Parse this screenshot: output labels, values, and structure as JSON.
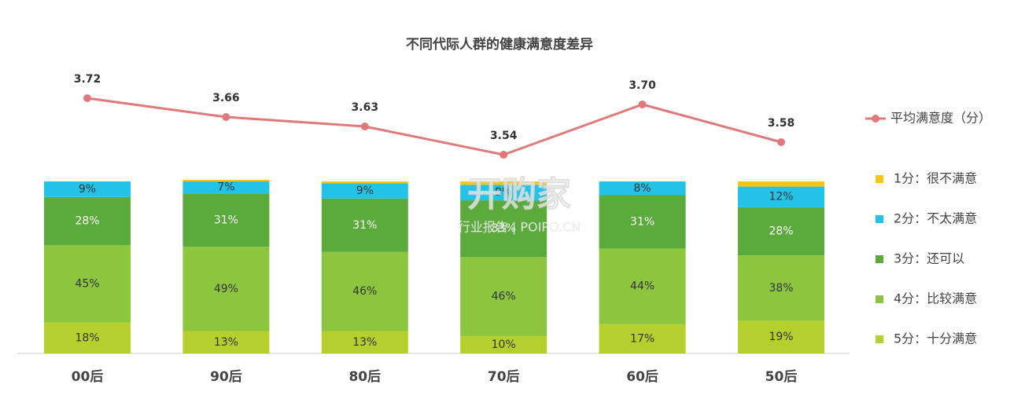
{
  "chart_data": {
    "type": "bar",
    "stacked": true,
    "title": "不同代际人群的健康满意度差异",
    "categories": [
      "00后",
      "90后",
      "80后",
      "70后",
      "60后",
      "50后"
    ],
    "ylim": [
      0,
      100
    ],
    "series": [
      {
        "name": "1分：很不满意",
        "color": "#f5c518",
        "values": [
          0,
          1,
          1,
          2,
          0,
          3
        ]
      },
      {
        "name": "2分：不太满意",
        "color": "#22c3e6",
        "values": [
          9,
          7,
          9,
          9,
          8,
          12
        ],
        "value_labels": [
          "9%",
          "7%",
          "9%",
          "9%",
          "8%",
          "12%"
        ]
      },
      {
        "name": "3分：还可以",
        "color": "#5aaa3c",
        "values": [
          28,
          31,
          31,
          33,
          31,
          28
        ],
        "value_labels": [
          "28%",
          "31%",
          "31%",
          "33%",
          "31%",
          "28%"
        ]
      },
      {
        "name": "4分：比较满意",
        "color": "#8cc63f",
        "values": [
          45,
          49,
          46,
          46,
          44,
          38
        ],
        "value_labels": [
          "45%",
          "49%",
          "46%",
          "46%",
          "44%",
          "38%"
        ]
      },
      {
        "name": "5分：十分满意",
        "color": "#b5cf2c",
        "values": [
          18,
          13,
          13,
          10,
          17,
          19
        ],
        "value_labels": [
          "18%",
          "13%",
          "13%",
          "10%",
          "17%",
          "19%"
        ]
      },
      {
        "name": "平均满意度（分）",
        "type": "line",
        "color": "#e07a7a",
        "values": [
          3.72,
          3.66,
          3.63,
          3.54,
          3.7,
          3.58
        ],
        "value_labels": [
          "3.72",
          "3.66",
          "3.63",
          "3.54",
          "3.70",
          "3.58"
        ]
      }
    ],
    "watermark": {
      "brand": "开购家",
      "sub": "行业报告 | POIPO.CN"
    }
  }
}
